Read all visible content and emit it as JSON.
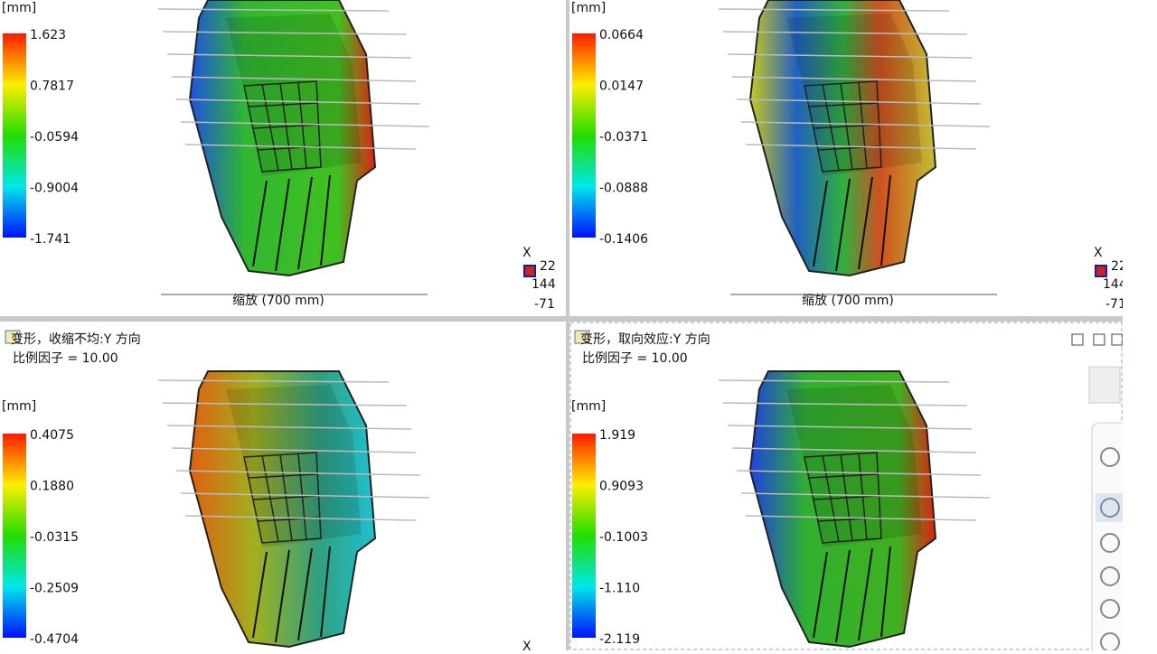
{
  "panels": [
    {
      "unit": "[mm]",
      "legend": [
        "1.623",
        "0.7817",
        "-0.0594",
        "-0.9004",
        "-1.741"
      ],
      "scale": "缩放 (700 mm)",
      "triad": [
        "X",
        "22",
        "144",
        "-71"
      ]
    },
    {
      "unit": "[mm]",
      "legend": [
        "0.0664",
        "0.0147",
        "-0.0371",
        "-0.0888",
        "-0.1406"
      ],
      "scale": "缩放 (700 mm)",
      "triad": [
        "X",
        "22",
        "144",
        "-71"
      ]
    },
    {
      "title": "变形，收缩不均:Y 方向",
      "subtitle": "比例因子 = 10.00",
      "unit": "[mm]",
      "legend": [
        "0.4075",
        "0.1880",
        "-0.0315",
        "-0.2509",
        "-0.4704"
      ],
      "triad": [
        "X"
      ]
    },
    {
      "title": "变形，取向效应:Y 方向",
      "subtitle": "比例因子 = 10.00",
      "unit": "[mm]",
      "legend": [
        "1.919",
        "0.9093",
        "-0.1003",
        "-1.110",
        "-2.119"
      ]
    }
  ]
}
